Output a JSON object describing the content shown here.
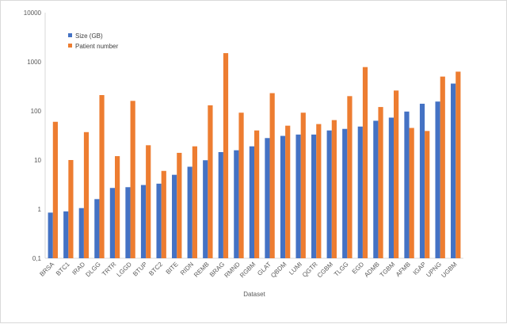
{
  "chart_data": {
    "type": "bar",
    "title": "",
    "xlabel": "Dataset",
    "ylabel": "",
    "yscale": "log",
    "ylim": [
      0.1,
      10000
    ],
    "y_ticks": [
      "0,1",
      "1",
      "10",
      "100",
      "1000",
      "10000"
    ],
    "grid": false,
    "legend_position": "top-left",
    "categories": [
      "BRSA",
      "BTC1",
      "IRAD",
      "DLGG",
      "TRTR",
      "LGGD",
      "BTUP",
      "BTC2",
      "BITE",
      "RIDN",
      "REMB",
      "BRAG",
      "RMND",
      "RGBM",
      "GLAT",
      "QBDM",
      "LUMI",
      "QGTR",
      "CGBM",
      "TLGG",
      "EGD",
      "ADMB",
      "TGBM",
      "AFMB",
      "IGAP",
      "UPNG",
      "UGBM"
    ],
    "series": [
      {
        "name": "Size (GB)",
        "color": "#4472c4",
        "values": [
          0.85,
          0.9,
          1.05,
          1.6,
          2.7,
          2.8,
          3.1,
          3.3,
          5.0,
          7.3,
          9.9,
          14.5,
          15.8,
          19,
          28,
          31,
          33,
          33,
          40,
          43,
          48,
          63,
          73,
          97,
          140,
          155,
          360
        ]
      },
      {
        "name": "Patient number",
        "color": "#ed7d31",
        "values": [
          60,
          10,
          37,
          210,
          12,
          160,
          20,
          6,
          14,
          19,
          130,
          1500,
          92,
          40,
          230,
          50,
          92,
          54,
          65,
          200,
          780,
          120,
          260,
          45,
          39,
          500,
          630
        ]
      }
    ]
  }
}
